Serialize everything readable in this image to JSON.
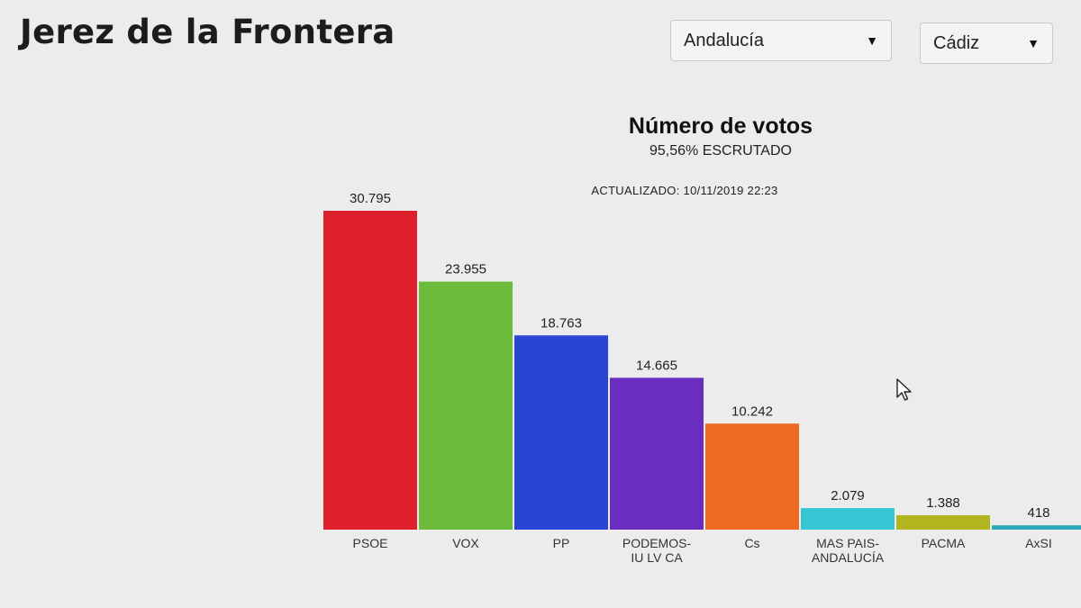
{
  "header": {
    "title": "Jerez de la Frontera"
  },
  "filters": {
    "region": {
      "value": "Andalucía"
    },
    "province": {
      "value": "Cádiz"
    }
  },
  "chart_data": {
    "type": "bar",
    "title": "Número de votos",
    "subtitle": "95,56% ESCRUTADO",
    "updated": "ACTUALIZADO: 10/11/2019 22:23",
    "categories": [
      "PSOE",
      "VOX",
      "PP",
      "PODEMOS-IU LV CA",
      "Cs",
      "MAS PAIS-ANDALUCÍA",
      "PACMA",
      "AxSI"
    ],
    "category_labels": [
      [
        "PSOE"
      ],
      [
        "VOX"
      ],
      [
        "PP"
      ],
      [
        "PODEMOS-",
        "IU LV CA"
      ],
      [
        "Cs"
      ],
      [
        "MAS PAIS-",
        "ANDALUCÍA"
      ],
      [
        "PACMA"
      ],
      [
        "AxSI"
      ]
    ],
    "values": [
      30795,
      23955,
      18763,
      14665,
      10242,
      2079,
      1388,
      418
    ],
    "value_labels": [
      "30.795",
      "23.955",
      "18.763",
      "14.665",
      "10.242",
      "2.079",
      "1.388",
      "418"
    ],
    "colors": [
      "#e01f2d",
      "#6dbb3a",
      "#2a45d6",
      "#6b2dbf",
      "#ef6a22",
      "#35c8d4",
      "#b3b51e",
      "#2aa8b8"
    ],
    "ylim": [
      0,
      30795
    ],
    "grid": false,
    "legend": "none"
  }
}
